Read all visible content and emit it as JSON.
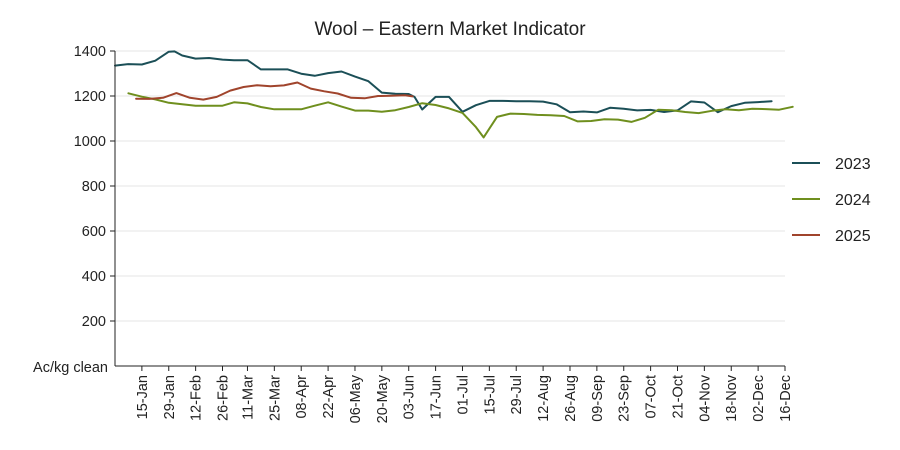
{
  "chart_data": {
    "type": "line",
    "title": "Wool – Eastern Market Indicator",
    "ylabel": "Ac/kg clean",
    "xlabel": "",
    "ylim": [
      0,
      1400
    ],
    "yticks": [
      200,
      400,
      600,
      800,
      1000,
      1200,
      1400
    ],
    "xlim": [
      "01-Jan",
      "16-Dec"
    ],
    "x_tick_labels": [
      "15-Jan",
      "29-Jan",
      "12-Feb",
      "26-Feb",
      "11-Mar",
      "25-Mar",
      "08-Apr",
      "22-Apr",
      "06-May",
      "20-May",
      "03-Jun",
      "17-Jun",
      "01-Jul",
      "15-Jul",
      "29-Jul",
      "12-Aug",
      "26-Aug",
      "09-Sep",
      "23-Sep",
      "07-Oct",
      "21-Oct",
      "04-Nov",
      "18-Nov",
      "02-Dec",
      "16-Dec"
    ],
    "grid": true,
    "legend_position": "right",
    "series": [
      {
        "name": "2023",
        "color": "#1b4f57",
        "points": [
          [
            "01-Jan",
            1335
          ],
          [
            "08-Jan",
            1342
          ],
          [
            "15-Jan",
            1340
          ],
          [
            "22-Jan",
            1357
          ],
          [
            "29-Jan",
            1397
          ],
          [
            "01-Feb",
            1398
          ],
          [
            "05-Feb",
            1380
          ],
          [
            "12-Feb",
            1366
          ],
          [
            "19-Feb",
            1369
          ],
          [
            "26-Feb",
            1362
          ],
          [
            "04-Mar",
            1359
          ],
          [
            "11-Mar",
            1359
          ],
          [
            "18-Mar",
            1318
          ],
          [
            "25-Mar",
            1318
          ],
          [
            "01-Apr",
            1318
          ],
          [
            "08-Apr",
            1299
          ],
          [
            "15-Apr",
            1290
          ],
          [
            "22-Apr",
            1302
          ],
          [
            "29-Apr",
            1309
          ],
          [
            "06-May",
            1286
          ],
          [
            "13-May",
            1266
          ],
          [
            "20-May",
            1215
          ],
          [
            "27-May",
            1210
          ],
          [
            "03-Jun",
            1209
          ],
          [
            "06-Jun",
            1196
          ],
          [
            "10-Jun",
            1140
          ],
          [
            "17-Jun",
            1196
          ],
          [
            "24-Jun",
            1196
          ],
          [
            "01-Jul",
            1130
          ],
          [
            "08-Jul",
            1159
          ],
          [
            "15-Jul",
            1178
          ],
          [
            "22-Jul",
            1178
          ],
          [
            "29-Jul",
            1177
          ],
          [
            "05-Aug",
            1177
          ],
          [
            "12-Aug",
            1175
          ],
          [
            "19-Aug",
            1163
          ],
          [
            "26-Aug",
            1128
          ],
          [
            "02-Sep",
            1131
          ],
          [
            "09-Sep",
            1127
          ],
          [
            "16-Sep",
            1148
          ],
          [
            "23-Sep",
            1143
          ],
          [
            "30-Sep",
            1136
          ],
          [
            "07-Oct",
            1138
          ],
          [
            "14-Oct",
            1129
          ],
          [
            "21-Oct",
            1136
          ],
          [
            "28-Oct",
            1176
          ],
          [
            "04-Nov",
            1171
          ],
          [
            "11-Nov",
            1128
          ],
          [
            "18-Nov",
            1155
          ],
          [
            "25-Nov",
            1170
          ],
          [
            "02-Dec",
            1173
          ],
          [
            "09-Dec",
            1177
          ]
        ]
      },
      {
        "name": "2024",
        "color": "#6f8f1e",
        "points": [
          [
            "08-Jan",
            1212
          ],
          [
            "15-Jan",
            1197
          ],
          [
            "22-Jan",
            1185
          ],
          [
            "29-Jan",
            1170
          ],
          [
            "05-Feb",
            1163
          ],
          [
            "12-Feb",
            1157
          ],
          [
            "19-Feb",
            1157
          ],
          [
            "26-Feb",
            1157
          ],
          [
            "04-Mar",
            1172
          ],
          [
            "11-Mar",
            1167
          ],
          [
            "18-Mar",
            1151
          ],
          [
            "25-Mar",
            1141
          ],
          [
            "01-Apr",
            1141
          ],
          [
            "08-Apr",
            1141
          ],
          [
            "15-Apr",
            1157
          ],
          [
            "22-Apr",
            1172
          ],
          [
            "29-Apr",
            1153
          ],
          [
            "06-May",
            1135
          ],
          [
            "13-May",
            1135
          ],
          [
            "20-May",
            1130
          ],
          [
            "27-May",
            1137
          ],
          [
            "03-Jun",
            1151
          ],
          [
            "10-Jun",
            1168
          ],
          [
            "17-Jun",
            1160
          ],
          [
            "24-Jun",
            1145
          ],
          [
            "01-Jul",
            1125
          ],
          [
            "08-Jul",
            1062
          ],
          [
            "12-Jul",
            1016
          ],
          [
            "19-Jul",
            1107
          ],
          [
            "26-Jul",
            1122
          ],
          [
            "02-Aug",
            1120
          ],
          [
            "09-Aug",
            1116
          ],
          [
            "16-Aug",
            1114
          ],
          [
            "23-Aug",
            1111
          ],
          [
            "30-Aug",
            1087
          ],
          [
            "06-Sep",
            1089
          ],
          [
            "13-Sep",
            1097
          ],
          [
            "20-Sep",
            1095
          ],
          [
            "27-Sep",
            1085
          ],
          [
            "04-Oct",
            1103
          ],
          [
            "11-Oct",
            1139
          ],
          [
            "18-Oct",
            1137
          ],
          [
            "25-Oct",
            1129
          ],
          [
            "01-Nov",
            1124
          ],
          [
            "08-Nov",
            1134
          ],
          [
            "15-Nov",
            1141
          ],
          [
            "22-Nov",
            1137
          ],
          [
            "29-Nov",
            1143
          ],
          [
            "06-Dec",
            1142
          ],
          [
            "13-Dec",
            1139
          ],
          [
            "20-Dec",
            1152
          ]
        ]
      },
      {
        "name": "2025",
        "color": "#a0442c",
        "points": [
          [
            "12-Jan",
            1188
          ],
          [
            "19-Jan",
            1187
          ],
          [
            "26-Jan",
            1192
          ],
          [
            "02-Feb",
            1213
          ],
          [
            "09-Feb",
            1192
          ],
          [
            "16-Feb",
            1184
          ],
          [
            "23-Feb",
            1196
          ],
          [
            "02-Mar",
            1224
          ],
          [
            "09-Mar",
            1240
          ],
          [
            "16-Mar",
            1248
          ],
          [
            "23-Mar",
            1243
          ],
          [
            "30-Mar",
            1247
          ],
          [
            "06-Apr",
            1260
          ],
          [
            "13-Apr",
            1233
          ],
          [
            "20-Apr",
            1221
          ],
          [
            "27-Apr",
            1211
          ],
          [
            "04-May",
            1192
          ],
          [
            "11-May",
            1190
          ],
          [
            "18-May",
            1200
          ],
          [
            "25-May",
            1201
          ],
          [
            "01-Jun",
            1203
          ],
          [
            "05-Jun",
            1198
          ]
        ]
      }
    ]
  }
}
